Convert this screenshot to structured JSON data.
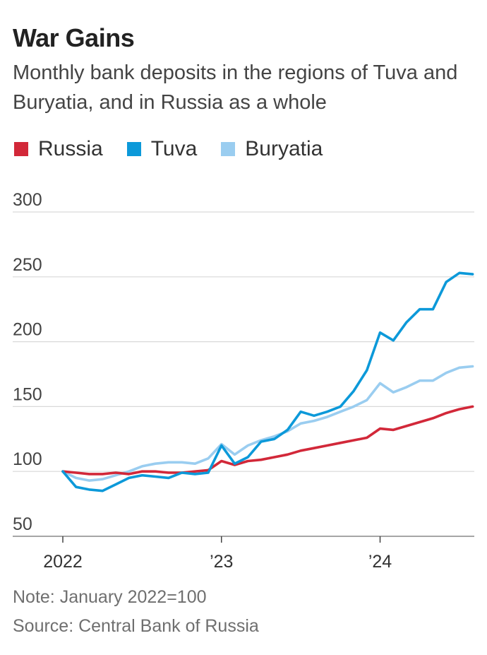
{
  "header": {
    "title": "War Gains",
    "subtitle": "Monthly bank deposits in the regions of Tuva and Buryatia, and in Russia as a whole"
  },
  "legend": [
    {
      "label": "Russia",
      "color": "#d22839"
    },
    {
      "label": "Tuva",
      "color": "#0c99d9"
    },
    {
      "label": "Buryatia",
      "color": "#9acdf0"
    }
  ],
  "footer": {
    "note": "Note: January 2022=100",
    "source": "Source: Central Bank of Russia"
  },
  "chart_data": {
    "type": "line",
    "x": [
      "2022-01",
      "2022-02",
      "2022-03",
      "2022-04",
      "2022-05",
      "2022-06",
      "2022-07",
      "2022-08",
      "2022-09",
      "2022-10",
      "2022-11",
      "2022-12",
      "2023-01",
      "2023-02",
      "2023-03",
      "2023-04",
      "2023-05",
      "2023-06",
      "2023-07",
      "2023-08",
      "2023-09",
      "2023-10",
      "2023-11",
      "2023-12",
      "2024-01",
      "2024-02",
      "2024-03",
      "2024-04",
      "2024-05",
      "2024-06",
      "2024-07",
      "2024-08"
    ],
    "x_tick_labels": [
      "2022",
      "’23",
      "’24"
    ],
    "x_tick_positions": [
      "2022-01",
      "2023-01",
      "2024-01"
    ],
    "y_ticks": [
      50,
      100,
      150,
      200,
      250,
      300
    ],
    "ylim": [
      50,
      300
    ],
    "grid": true,
    "legend_position": "top-left",
    "series": [
      {
        "name": "Russia",
        "color": "#d22839",
        "values": [
          100,
          99,
          98,
          98,
          99,
          98,
          100,
          100,
          99,
          99,
          100,
          101,
          108,
          105,
          108,
          109,
          111,
          113,
          116,
          118,
          120,
          122,
          124,
          126,
          133,
          132,
          135,
          138,
          141,
          145,
          148,
          150
        ]
      },
      {
        "name": "Tuva",
        "color": "#0c99d9",
        "values": [
          100,
          88,
          86,
          85,
          90,
          95,
          97,
          96,
          95,
          99,
          98,
          99,
          120,
          106,
          111,
          123,
          125,
          132,
          146,
          143,
          146,
          150,
          162,
          178,
          207,
          201,
          215,
          225,
          225,
          246,
          253,
          252
        ]
      },
      {
        "name": "Buryatia",
        "color": "#9acdf0",
        "values": [
          100,
          95,
          93,
          94,
          97,
          100,
          104,
          106,
          107,
          107,
          106,
          110,
          121,
          113,
          120,
          124,
          127,
          131,
          137,
          139,
          142,
          146,
          150,
          155,
          168,
          161,
          165,
          170,
          170,
          176,
          180,
          181
        ]
      }
    ]
  }
}
